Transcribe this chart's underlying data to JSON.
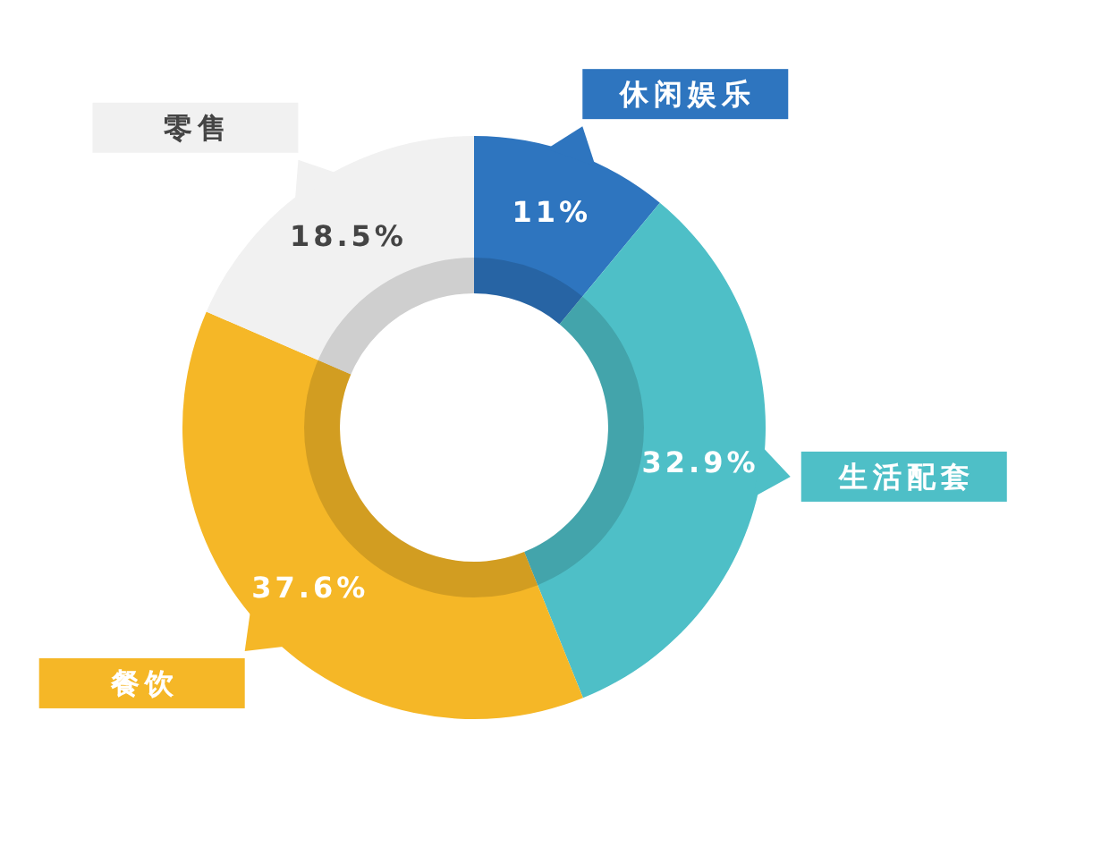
{
  "chart_data": {
    "type": "donut",
    "categories": [
      "休闲娱乐",
      "生活配套",
      "餐饮",
      "零售"
    ],
    "values": [
      11,
      32.9,
      37.6,
      18.5
    ],
    "colors": [
      "#2e75bf",
      "#4ebfc7",
      "#f5b727",
      "#f1f1f1"
    ],
    "value_labels": [
      "11%",
      "32.9%",
      "37.6%",
      "18.5%"
    ]
  }
}
